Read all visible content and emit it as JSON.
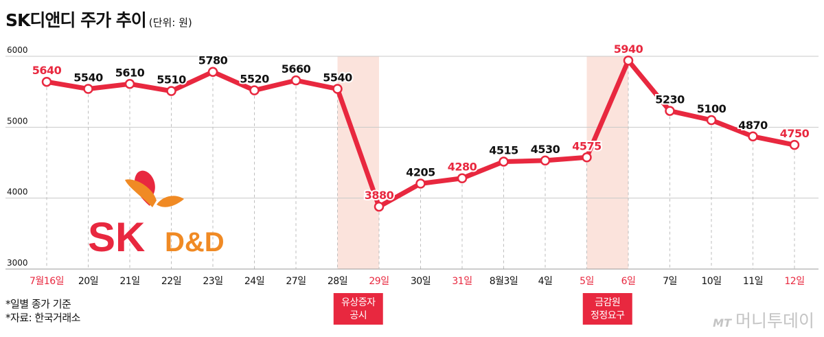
{
  "title": "SK디앤디 주가 추이",
  "unit": "(단위: 원)",
  "footnotes": [
    "*일별 종가 기준",
    "*자료: 한국거래소"
  ],
  "watermark": {
    "mark": "MT",
    "name": "머니투데이"
  },
  "logo": {
    "sk": "SK",
    "dd": "D&D"
  },
  "colors": {
    "line": "#e8283f",
    "highlight_text": "#e8283f",
    "label_dark": "#111111",
    "shade": "#fbe3dc",
    "grid": "#c8c8c8",
    "logo_red": "#e8283f",
    "logo_orange": "#f08a24"
  },
  "chart_data": {
    "type": "line",
    "title": "SK디앤디 주가 추이",
    "ylabel": "(단위: 원)",
    "ylim": [
      3000,
      6000
    ],
    "yticks": [
      3000,
      4000,
      5000,
      6000
    ],
    "grid": true,
    "categories": [
      "7월16일",
      "20일",
      "21일",
      "22일",
      "23일",
      "24일",
      "27일",
      "28일",
      "29일",
      "30일",
      "31일",
      "8월3일",
      "4일",
      "5일",
      "6일",
      "7일",
      "10일",
      "11일",
      "12일"
    ],
    "highlight_categories": [
      0,
      8,
      10,
      13,
      14,
      18
    ],
    "highlight_values": [
      0,
      8,
      10,
      13,
      14,
      18
    ],
    "series": [
      {
        "values": [
          5640,
          5540,
          5610,
          5510,
          5780,
          5520,
          5660,
          5540,
          3880,
          4205,
          4280,
          4515,
          4530,
          4575,
          5940,
          5230,
          5100,
          4870,
          4750
        ]
      }
    ],
    "annotations": [
      {
        "from": 7,
        "to": 8,
        "lines": [
          "유상증자",
          "공시"
        ]
      },
      {
        "from": 13,
        "to": 14,
        "lines": [
          "금감원",
          "정정요구"
        ]
      }
    ]
  }
}
